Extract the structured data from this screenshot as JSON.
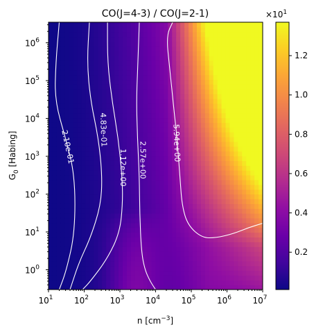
{
  "chart_data": {
    "type": "heatmap",
    "title": "CO(J=4-3) / CO(J=2-1)",
    "xlabel": "n [cm",
    "xlabel_sup": "−3",
    "xlabel_end": "]",
    "ylabel_main": "G",
    "ylabel_sub": "0",
    "ylabel_end": " [Habing]",
    "x_scale": "log",
    "y_scale": "log",
    "xlim": [
      10,
      10000000
    ],
    "ylim": [
      0.3,
      3500000
    ],
    "x_ticks": [
      {
        "value": 10,
        "base": "10",
        "exp": "1"
      },
      {
        "value": 100,
        "base": "10",
        "exp": "2"
      },
      {
        "value": 1000,
        "base": "10",
        "exp": "3"
      },
      {
        "value": 10000,
        "base": "10",
        "exp": "4"
      },
      {
        "value": 100000,
        "base": "10",
        "exp": "5"
      },
      {
        "value": 1000000,
        "base": "10",
        "exp": "6"
      },
      {
        "value": 10000000,
        "base": "10",
        "exp": "7"
      }
    ],
    "y_ticks": [
      {
        "value": 1,
        "base": "10",
        "exp": "0"
      },
      {
        "value": 10,
        "base": "10",
        "exp": "1"
      },
      {
        "value": 100,
        "base": "10",
        "exp": "2"
      },
      {
        "value": 1000,
        "base": "10",
        "exp": "3"
      },
      {
        "value": 10000,
        "base": "10",
        "exp": "4"
      },
      {
        "value": 100000,
        "base": "10",
        "exp": "5"
      },
      {
        "value": 1000000,
        "base": "10",
        "exp": "6"
      }
    ],
    "colormap": "plasma",
    "colorbar": {
      "range": [
        0.1,
        13.7
      ],
      "scale_base": "×10",
      "scale_exp": "1",
      "ticks": [
        {
          "value": 2,
          "label": "0.2"
        },
        {
          "value": 4,
          "label": "0.4"
        },
        {
          "value": 6,
          "label": "0.6"
        },
        {
          "value": 8,
          "label": "0.8"
        },
        {
          "value": 10,
          "label": "1.0"
        },
        {
          "value": 12,
          "label": "1.2"
        }
      ]
    },
    "contours": [
      {
        "level": 0.21,
        "label": "2.10e-01",
        "points": [
          [
            20,
            3500000
          ],
          [
            16,
            300000
          ],
          [
            15,
            30000
          ],
          [
            30,
            3000
          ],
          [
            55,
            300
          ],
          [
            55,
            10
          ],
          [
            32,
            1
          ],
          [
            20,
            0.3
          ]
        ]
      },
      {
        "level": 0.483,
        "label": "4.83e-01",
        "points": [
          [
            140,
            3500000
          ],
          [
            120,
            300000
          ],
          [
            150,
            30000
          ],
          [
            250,
            3000
          ],
          [
            320,
            300
          ],
          [
            290,
            50
          ],
          [
            150,
            7
          ],
          [
            70,
            1.5
          ],
          [
            40,
            0.3
          ]
        ]
      },
      {
        "level": 1.12,
        "label": "1.12e+00",
        "points": [
          [
            450,
            3500000
          ],
          [
            450,
            300000
          ],
          [
            600,
            30000
          ],
          [
            900,
            3000
          ],
          [
            1150,
            300
          ],
          [
            1200,
            60
          ],
          [
            1000,
            10
          ],
          [
            450,
            2
          ],
          [
            150,
            0.5
          ],
          [
            90,
            0.3
          ]
        ]
      },
      {
        "level": 2.57,
        "label": "2.57e+00",
        "points": [
          [
            3500,
            3500000
          ],
          [
            3200,
            300000
          ],
          [
            2900,
            30000
          ],
          [
            3100,
            3000
          ],
          [
            3500,
            300
          ],
          [
            3600,
            30
          ],
          [
            4000,
            3
          ],
          [
            5000,
            1
          ],
          [
            7000,
            0.5
          ],
          [
            10000,
            0.3
          ]
        ]
      },
      {
        "level": 5.94,
        "label": "5.94e+00",
        "points": [
          [
            30000,
            3500000
          ],
          [
            20000,
            1500000
          ],
          [
            25000,
            200000
          ],
          [
            32000,
            20000
          ],
          [
            40000,
            3000
          ],
          [
            48000,
            300
          ],
          [
            55000,
            50
          ],
          [
            80000,
            15
          ],
          [
            200000,
            7
          ],
          [
            500000,
            7
          ],
          [
            1500000,
            9
          ],
          [
            4000000,
            13
          ],
          [
            10000000,
            17
          ]
        ]
      }
    ]
  }
}
